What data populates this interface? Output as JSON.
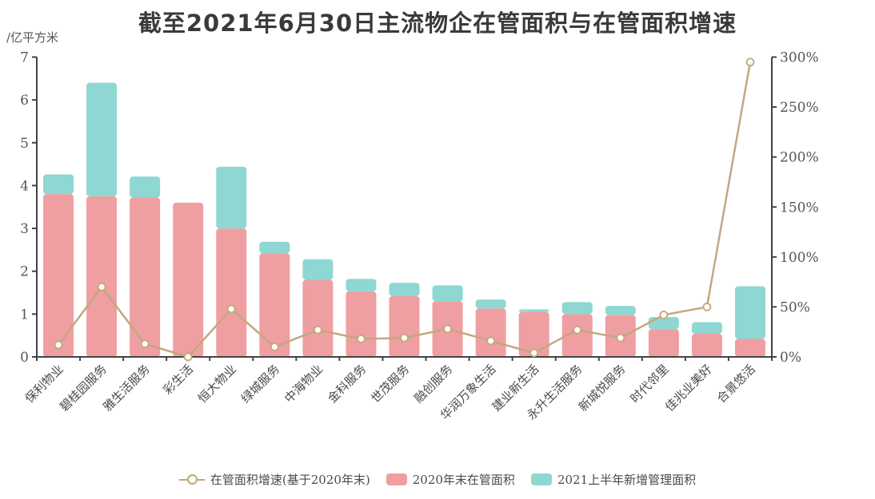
{
  "title": "截至2021年6月30日主流物企在管面积与在管面积增速",
  "legend": [
    {
      "label": "在管面积增速(基于2020年末)",
      "type": "line",
      "color": "#c3a780"
    },
    {
      "label": "2020年末在管面积",
      "type": "bar",
      "color": "#ef9fa1"
    },
    {
      "label": "2021上半年新增管理面积",
      "type": "bar",
      "color": "#8ed7d2"
    }
  ],
  "colors": {
    "base_bar": "#ef9fa1",
    "new_bar": "#8ed7d2",
    "growth_line": "#c3a780",
    "marker_fill": "#fffdf4",
    "axis": "#434343",
    "tick_text": "#555555",
    "title_text": "#3a3a3a"
  },
  "chart_data": {
    "type": "bar",
    "subtype": "stacked-bar-with-line",
    "title": "截至2021年6月30日主流物企在管面积与在管面积增速",
    "categories": [
      "保利物业",
      "碧桂园服务",
      "雅生活服务",
      "彩生活",
      "恒大物业",
      "绿城服务",
      "中海物业",
      "金科服务",
      "世茂服务",
      "融创服务",
      "华润万象生活",
      "建业新生活",
      "永升生活服务",
      "新城悦服务",
      "时代邻里",
      "佳兆业美好",
      "合景悠活"
    ],
    "series": [
      {
        "name": "2020年末在管面积",
        "type": "bar",
        "stack": "total",
        "unit": "亿平方米",
        "values": [
          3.8,
          3.75,
          3.72,
          3.6,
          3.0,
          2.42,
          1.8,
          1.53,
          1.42,
          1.3,
          1.13,
          1.05,
          1.0,
          0.98,
          0.65,
          0.54,
          0.42
        ]
      },
      {
        "name": "2021上半年新增管理面积",
        "type": "bar",
        "stack": "total",
        "unit": "亿平方米",
        "values": [
          0.46,
          2.65,
          0.49,
          0.0,
          1.44,
          0.27,
          0.48,
          0.29,
          0.31,
          0.37,
          0.21,
          0.06,
          0.28,
          0.21,
          0.28,
          0.27,
          1.23
        ]
      },
      {
        "name": "在管面积增速(基于2020年末)",
        "type": "line",
        "axis": "right",
        "unit": "%",
        "values": [
          12,
          70,
          13,
          0,
          48,
          10,
          27,
          18,
          19,
          28,
          16,
          4,
          27,
          19,
          42,
          50,
          295
        ]
      }
    ],
    "left_axis": {
      "label": "/亿平方米",
      "min": 0,
      "max": 7,
      "ticks": [
        "0",
        "1",
        "2",
        "3",
        "4",
        "5",
        "6",
        "7"
      ]
    },
    "right_axis": {
      "min": 0,
      "max": 300,
      "ticks": [
        "0%",
        "50%",
        "100%",
        "150%",
        "200%",
        "250%",
        "300%"
      ]
    },
    "grid": false,
    "legend_position": "bottom"
  }
}
